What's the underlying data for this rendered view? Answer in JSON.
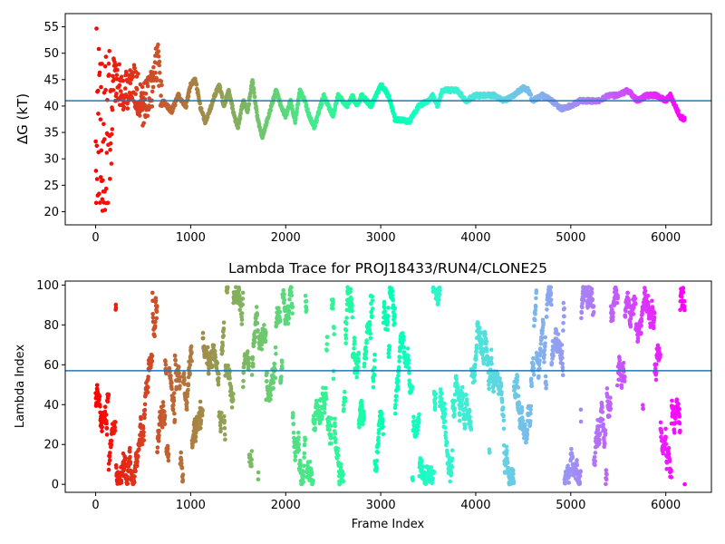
{
  "chart_data": [
    {
      "type": "scatter",
      "title": "",
      "xlabel": "",
      "ylabel": "ΔG (kT)",
      "xlim": [
        -320,
        6480
      ],
      "ylim": [
        17.5,
        57.5
      ],
      "xticks": [
        0,
        1000,
        2000,
        3000,
        4000,
        5000,
        6000
      ],
      "yticks": [
        20,
        25,
        30,
        35,
        40,
        45,
        50,
        55
      ],
      "xtick_labels": [
        "0",
        "1000",
        "2000",
        "3000",
        "4000",
        "5000",
        "6000"
      ],
      "ytick_labels": [
        "20",
        "25",
        "30",
        "35",
        "40",
        "45",
        "50",
        "55"
      ],
      "hline": 41,
      "hline_color": "#1f77b4",
      "colormap": "rainbow (reversed, by frame index)",
      "n_frames": 6200,
      "grid": false,
      "legend": "none",
      "trace_keypoints": [
        [
          0,
          20
        ],
        [
          100,
          55
        ],
        [
          200,
          45
        ],
        [
          300,
          43
        ],
        [
          400,
          44
        ],
        [
          500,
          40
        ],
        [
          600,
          44
        ],
        [
          650,
          49
        ],
        [
          700,
          41
        ],
        [
          800,
          39
        ],
        [
          870,
          42
        ],
        [
          950,
          40
        ],
        [
          1000,
          44
        ],
        [
          1050,
          45
        ],
        [
          1100,
          40
        ],
        [
          1150,
          37
        ],
        [
          1200,
          39
        ],
        [
          1250,
          42
        ],
        [
          1300,
          44
        ],
        [
          1350,
          40
        ],
        [
          1400,
          43
        ],
        [
          1460,
          38
        ],
        [
          1500,
          36
        ],
        [
          1550,
          41
        ],
        [
          1600,
          39
        ],
        [
          1650,
          45
        ],
        [
          1700,
          38
        ],
        [
          1750,
          34
        ],
        [
          1800,
          37
        ],
        [
          1850,
          40
        ],
        [
          1900,
          43
        ],
        [
          1950,
          40
        ],
        [
          2000,
          38
        ],
        [
          2050,
          41
        ],
        [
          2100,
          37
        ],
        [
          2150,
          43
        ],
        [
          2200,
          41
        ],
        [
          2250,
          38
        ],
        [
          2300,
          36
        ],
        [
          2350,
          39
        ],
        [
          2400,
          42
        ],
        [
          2450,
          40
        ],
        [
          2500,
          38
        ],
        [
          2550,
          42
        ],
        [
          2600,
          41
        ],
        [
          2650,
          40
        ],
        [
          2700,
          42
        ],
        [
          2750,
          40
        ],
        [
          2800,
          42
        ],
        [
          2850,
          41
        ],
        [
          2900,
          40
        ],
        [
          2950,
          42
        ],
        [
          3000,
          44
        ],
        [
          3050,
          43
        ],
        [
          3100,
          41
        ],
        [
          3150,
          37.5
        ],
        [
          3300,
          37
        ],
        [
          3400,
          40
        ],
        [
          3500,
          41
        ],
        [
          3550,
          42
        ],
        [
          3600,
          40
        ],
        [
          3650,
          43
        ],
        [
          3800,
          43
        ],
        [
          3900,
          41
        ],
        [
          4000,
          42
        ],
        [
          4100,
          42
        ],
        [
          4200,
          42
        ],
        [
          4300,
          41
        ],
        [
          4400,
          42
        ],
        [
          4500,
          43.5
        ],
        [
          4550,
          43
        ],
        [
          4600,
          41
        ],
        [
          4700,
          42
        ],
        [
          4800,
          41
        ],
        [
          4900,
          39.5
        ],
        [
          5000,
          40
        ],
        [
          5100,
          41
        ],
        [
          5200,
          41
        ],
        [
          5300,
          41
        ],
        [
          5400,
          42
        ],
        [
          5500,
          42
        ],
        [
          5600,
          43
        ],
        [
          5700,
          41
        ],
        [
          5800,
          42
        ],
        [
          5900,
          42
        ],
        [
          6000,
          41
        ],
        [
          6050,
          42
        ],
        [
          6100,
          40
        ],
        [
          6150,
          38
        ],
        [
          6200,
          37.5
        ]
      ]
    },
    {
      "type": "scatter",
      "title": "Lambda Trace for PROJ18433/RUN4/CLONE25",
      "xlabel": "Frame Index",
      "ylabel": "Lambda Index",
      "xlim": [
        -320,
        6480
      ],
      "ylim": [
        -4,
        102
      ],
      "xticks": [
        0,
        1000,
        2000,
        3000,
        4000,
        5000,
        6000
      ],
      "yticks": [
        0,
        20,
        40,
        60,
        80,
        100
      ],
      "xtick_labels": [
        "0",
        "1000",
        "2000",
        "3000",
        "4000",
        "5000",
        "6000"
      ],
      "ytick_labels": [
        "0",
        "20",
        "40",
        "60",
        "80",
        "100"
      ],
      "hline": 57,
      "hline_color": "#1f77b4",
      "colormap": "rainbow (reversed, by frame index)",
      "n_frames": 6200,
      "lambda_range": [
        0,
        99
      ],
      "grid": false,
      "legend": "none"
    }
  ]
}
